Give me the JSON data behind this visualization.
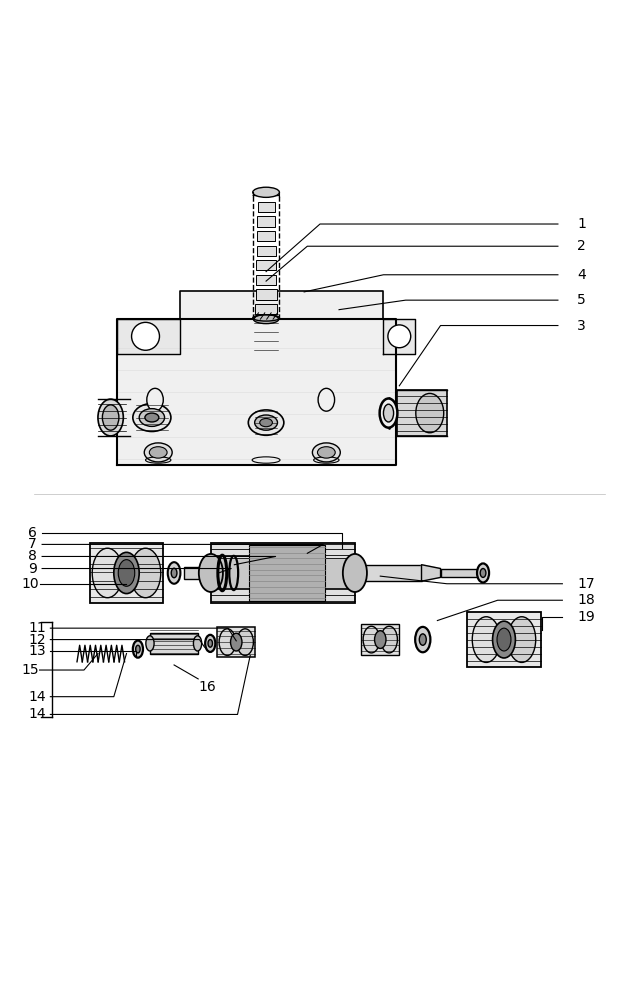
{
  "bg_color": "#ffffff",
  "line_color": "#000000",
  "figsize": [
    6.4,
    10.0
  ],
  "dpi": 100
}
